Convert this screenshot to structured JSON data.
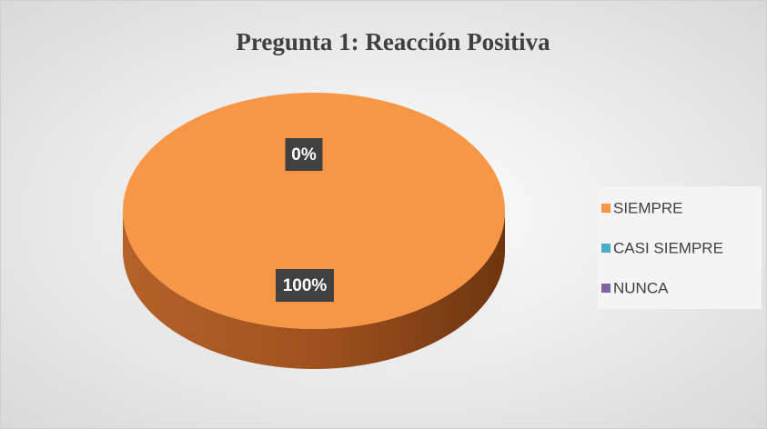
{
  "chart_data": {
    "type": "pie",
    "title": "Pregunta 1: Reacción Positiva",
    "categories": [
      "SIEMPRE",
      "CASI SIEMPRE",
      "NUNCA"
    ],
    "values": [
      100,
      0,
      0
    ],
    "value_labels": [
      "100%",
      "0%",
      null
    ],
    "colors": [
      "#f79646",
      "#4bacc6",
      "#8064a2"
    ],
    "legend": "right"
  }
}
